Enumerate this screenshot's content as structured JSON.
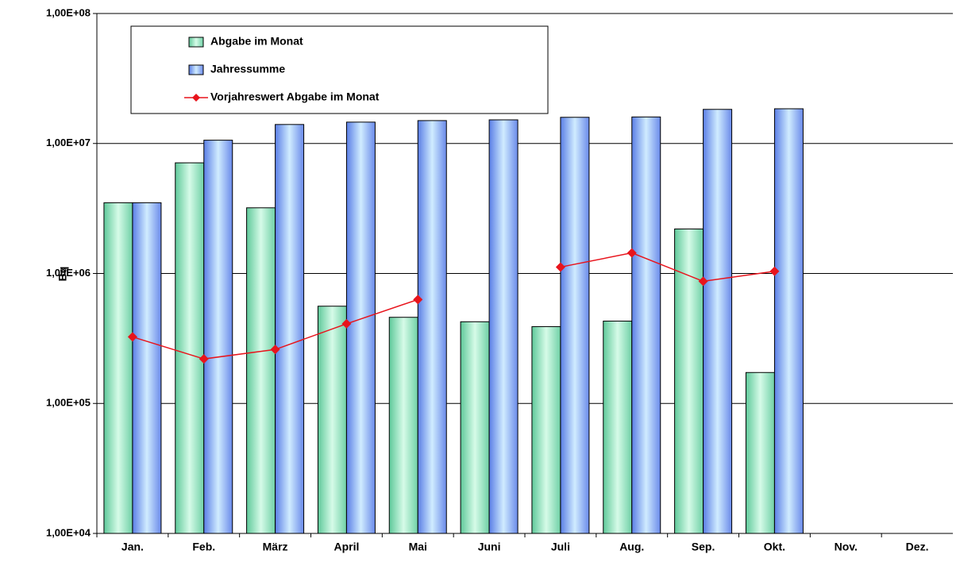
{
  "chart_data": {
    "type": "bar",
    "y_label": "Bq",
    "log_scale": true,
    "grid": true,
    "legend_position": "upper left",
    "categories": [
      "Jan.",
      "Feb.",
      "März",
      "April",
      "Mai",
      "Juni",
      "Juli",
      "Aug.",
      "Sep.",
      "Okt.",
      "Nov.",
      "Dez."
    ],
    "series": [
      {
        "name": "Abgabe im Monat",
        "type": "bar",
        "color": "#a6ecc8",
        "values": [
          3500000,
          7100000,
          3200000,
          560000,
          460000,
          425000,
          390000,
          430000,
          2200000,
          173000,
          null,
          null
        ]
      },
      {
        "name": "Jahressumme",
        "type": "bar",
        "color": "#9cb8f4",
        "values": [
          3500000,
          10600000,
          14000000,
          14600000,
          15000000,
          15200000,
          15900000,
          16000000,
          18300000,
          18500000,
          null,
          null
        ]
      },
      {
        "name": "Vorjahreswert Abgabe im Monat",
        "type": "line",
        "color": "#e8141c",
        "values": [
          325000,
          220000,
          260000,
          410000,
          630000,
          null,
          1120000,
          1440000,
          870000,
          1040000,
          null,
          null
        ]
      }
    ],
    "ylim": [
      10000,
      100000000
    ],
    "yticks": [
      {
        "value": 10000,
        "label": "1,00E+04"
      },
      {
        "value": 100000,
        "label": "1,00E+05"
      },
      {
        "value": 1000000,
        "label": "1,00E+06"
      },
      {
        "value": 10000000,
        "label": "1,00E+07"
      },
      {
        "value": 100000000,
        "label": "1,00E+08"
      }
    ]
  }
}
